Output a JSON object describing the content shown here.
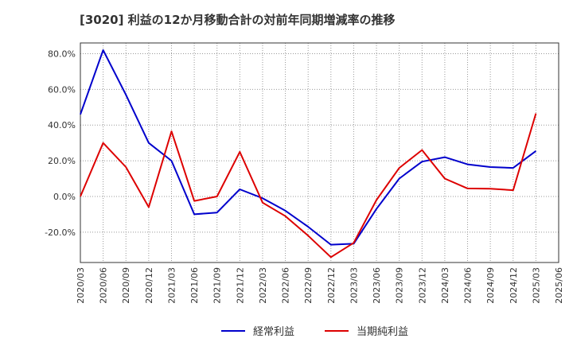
{
  "chart_data": {
    "type": "line",
    "title": "[3020]  利益の12か月移動合計の対前年同期増減率の推移",
    "xlabel": "",
    "ylabel": "",
    "ylim": [
      -37,
      86
    ],
    "yticks": [
      -20,
      0,
      20,
      40,
      60,
      80
    ],
    "ytick_labels": [
      "-20.0%",
      "0.0%",
      "20.0%",
      "40.0%",
      "60.0%",
      "80.0%"
    ],
    "categories": [
      "2020/03",
      "2020/06",
      "2020/09",
      "2020/12",
      "2021/03",
      "2021/06",
      "2021/09",
      "2021/12",
      "2022/03",
      "2022/06",
      "2022/09",
      "2022/12",
      "2023/03",
      "2023/06",
      "2023/09",
      "2023/12",
      "2024/03",
      "2024/06",
      "2024/09",
      "2024/12",
      "2025/03",
      "2025/06"
    ],
    "grid": true,
    "legend_position": "bottom",
    "series": [
      {
        "name": "経常利益",
        "color": "#0000cc",
        "values": [
          46.0,
          82.0,
          57.0,
          30.0,
          20.0,
          -10.0,
          -9.0,
          4.0,
          -1.0,
          -8.0,
          -17.0,
          -27.0,
          -26.5,
          -7.0,
          10.0,
          19.5,
          22.0,
          18.0,
          16.5,
          16.0,
          25.5,
          null
        ]
      },
      {
        "name": "当期純利益",
        "color": "#dd0000",
        "values": [
          0.0,
          30.0,
          16.5,
          -6.0,
          36.5,
          -2.5,
          0.0,
          25.0,
          -3.5,
          -11.0,
          -22.0,
          -34.0,
          -26.0,
          -2.0,
          16.0,
          26.0,
          10.0,
          4.5,
          4.3,
          3.5,
          46.5,
          null
        ]
      }
    ]
  }
}
